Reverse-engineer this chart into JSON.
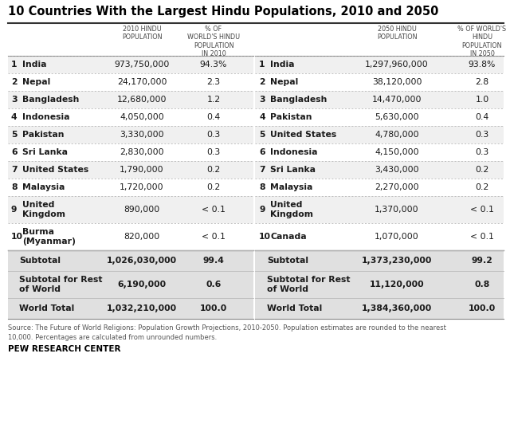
{
  "title": "10 Countries With the Largest Hindu Populations, 2010 and 2050",
  "col_header_left1": "2010 HINDU\nPOPULATION",
  "col_header_left2": "% OF\nWORLD'S HINDU\nPOPULATION\nIN 2010",
  "col_header_right1": "2050 HINDU\nPOPULATION",
  "col_header_right2": "% OF WORLD'S\nHINDU\nPOPULATION\nIN 2050",
  "rows_2010": [
    [
      "1",
      "India",
      "973,750,000",
      "94.3%"
    ],
    [
      "2",
      "Nepal",
      "24,170,000",
      "2.3"
    ],
    [
      "3",
      "Bangladesh",
      "12,680,000",
      "1.2"
    ],
    [
      "4",
      "Indonesia",
      "4,050,000",
      "0.4"
    ],
    [
      "5",
      "Pakistan",
      "3,330,000",
      "0.3"
    ],
    [
      "6",
      "Sri Lanka",
      "2,830,000",
      "0.3"
    ],
    [
      "7",
      "United States",
      "1,790,000",
      "0.2"
    ],
    [
      "8",
      "Malaysia",
      "1,720,000",
      "0.2"
    ],
    [
      "9",
      "United\nKingdom",
      "890,000",
      "< 0.1"
    ],
    [
      "10",
      "Burma\n(Myanmar)",
      "820,000",
      "< 0.1"
    ]
  ],
  "rows_2050": [
    [
      "1",
      "India",
      "1,297,960,000",
      "93.8%"
    ],
    [
      "2",
      "Nepal",
      "38,120,000",
      "2.8"
    ],
    [
      "3",
      "Bangladesh",
      "14,470,000",
      "1.0"
    ],
    [
      "4",
      "Pakistan",
      "5,630,000",
      "0.4"
    ],
    [
      "5",
      "United States",
      "4,780,000",
      "0.3"
    ],
    [
      "6",
      "Indonesia",
      "4,150,000",
      "0.3"
    ],
    [
      "7",
      "Sri Lanka",
      "3,430,000",
      "0.2"
    ],
    [
      "8",
      "Malaysia",
      "2,270,000",
      "0.2"
    ],
    [
      "9",
      "United\nKingdom",
      "1,370,000",
      "< 0.1"
    ],
    [
      "10",
      "Canada",
      "1,070,000",
      "< 0.1"
    ]
  ],
  "subtotal_2010": [
    "1,026,030,000",
    "99.4"
  ],
  "subtotal_rest_2010": [
    "6,190,000",
    "0.6"
  ],
  "world_total_2010": [
    "1,032,210,000",
    "100.0"
  ],
  "subtotal_2050": [
    "1,373,230,000",
    "99.2"
  ],
  "subtotal_rest_2050": [
    "11,120,000",
    "0.8"
  ],
  "world_total_2050": [
    "1,384,360,000",
    "100.0"
  ],
  "source_text": "Source: The Future of World Religions: Population Growth Projections, 2010-2050. Population estimates are rounded to the nearest\n10,000. Percentages are calculated from unrounded numbers.",
  "footer": "PEW RESEARCH CENTER",
  "bg_color": "#ffffff",
  "row_alt_bg": "#f0f0f0",
  "summary_bg": "#e0e0e0",
  "divider_color": "#aaaaaa",
  "border_color": "#888888",
  "text_color": "#1a1a1a",
  "header_text_color": "#444444",
  "title_color": "#000000"
}
